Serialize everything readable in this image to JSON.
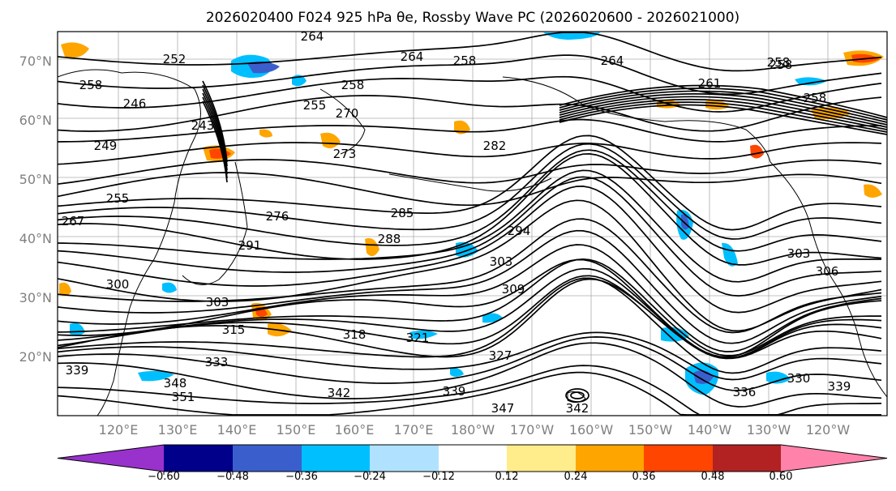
{
  "title": "2026020400 F024 925 hPa θe, Rossby Wave PC (2026020600 - 2026021000)",
  "map": {
    "lat_labels": [
      "70°N",
      "60°N",
      "50°N",
      "40°N",
      "30°N",
      "20°N"
    ],
    "lon_labels": [
      "120°E",
      "130°E",
      "140°E",
      "150°E",
      "160°E",
      "170°E",
      "180°W",
      "170°W",
      "160°W",
      "150°W",
      "140°W",
      "130°W",
      "120°W"
    ],
    "contour_labels": [
      "258",
      "246",
      "252",
      "243",
      "249",
      "255",
      "264",
      "258",
      "255",
      "270",
      "273",
      "276",
      "264",
      "258",
      "267",
      "282",
      "285",
      "288",
      "291",
      "294",
      "303",
      "309",
      "300",
      "303",
      "315",
      "318",
      "321",
      "327",
      "333",
      "339",
      "351",
      "348",
      "342",
      "339",
      "347",
      "342",
      "336",
      "330",
      "339",
      "303",
      "306",
      "258",
      "258",
      "264",
      "261",
      "258"
    ],
    "shading_colors": {
      "negative_strong": "#3a5fcd",
      "negative": "#00bfff",
      "positive": "#ffa500",
      "positive_strong": "#ff4500"
    }
  },
  "colorbar": {
    "ticks": [
      "−0.60",
      "−0.48",
      "−0.36",
      "−0.24",
      "−0.12",
      "0.12",
      "0.24",
      "0.36",
      "0.48",
      "0.60"
    ],
    "colors": [
      "#9932cc",
      "#00008b",
      "#3a5fcd",
      "#00bfff",
      "#b0e2ff",
      "#ffffff",
      "#ffec8b",
      "#ffa500",
      "#ff4500",
      "#b22222",
      "#ff82ab"
    ]
  }
}
